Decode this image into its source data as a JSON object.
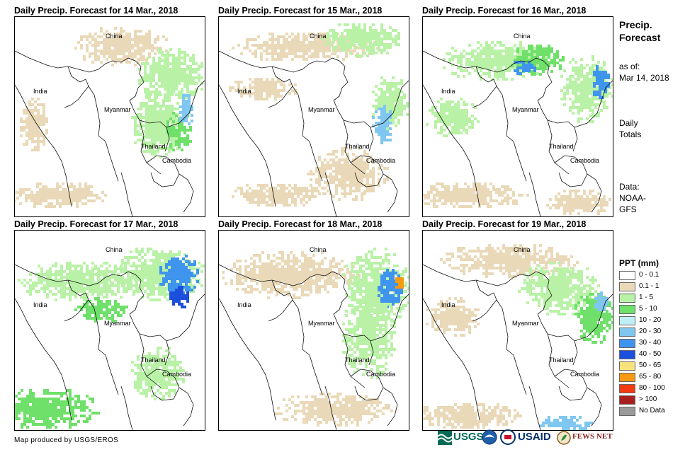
{
  "panels": [
    {
      "title": "Daily Precip. Forecast for 14 Mar., 2018",
      "labels": {
        "china": "China",
        "india": "India",
        "myanmar": "Myanmar",
        "thailand": "Thailand",
        "cambodia": "Cambodia"
      }
    },
    {
      "title": "Daily Precip. Forecast for 15 Mar., 2018",
      "labels": {
        "china": "China",
        "india": "India",
        "myanmar": "Myanmar",
        "thailand": "Thailand",
        "cambodia": "Cambodia"
      }
    },
    {
      "title": "Daily Precip. Forecast for 16 Mar., 2018",
      "labels": {
        "china": "China",
        "india": "India",
        "myanmar": "Myanmar",
        "thailand": "Thailand",
        "cambodia": "Cambodia"
      }
    },
    {
      "title": "Daily Precip. Forecast for 17 Mar., 2018",
      "labels": {
        "china": "China",
        "india": "India",
        "myanmar": "Myanmar",
        "thailand": "Thailand",
        "cambodia": "Cambodia"
      }
    },
    {
      "title": "Daily Precip. Forecast for 18 Mar., 2018",
      "labels": {
        "china": "China",
        "india": "India",
        "myanmar": "Myanmar",
        "thailand": "Thailand",
        "cambodia": "Cambodia"
      }
    },
    {
      "title": "Daily Precip. Forecast for 19 Mar., 2018",
      "labels": {
        "china": "China",
        "india": "India",
        "myanmar": "Myanmar",
        "thailand": "Thailand",
        "cambodia": "Cambodia"
      }
    }
  ],
  "sidebar": {
    "title_line1": "Precip.",
    "title_line2": "Forecast",
    "asof_label": "as of:",
    "asof_date": "Mar 14, 2018",
    "totals_line1": "Daily",
    "totals_line2": "Totals",
    "data_line1": "Data:",
    "data_line2": "NOAA-",
    "data_line3": "GFS"
  },
  "legend": {
    "title": "PPT (mm)",
    "items": [
      {
        "label": "0 - 0.1",
        "color": "#ffffff"
      },
      {
        "label": "0.1 - 1",
        "color": "#ead9b8"
      },
      {
        "label": "1 - 5",
        "color": "#b9f2a6"
      },
      {
        "label": "5 - 10",
        "color": "#6fe06a"
      },
      {
        "label": "10 - 20",
        "color": "#bdeff5"
      },
      {
        "label": "20 - 30",
        "color": "#7fc7f0"
      },
      {
        "label": "30 - 40",
        "color": "#3f95ee"
      },
      {
        "label": "40 - 50",
        "color": "#1c4fdc"
      },
      {
        "label": "50 - 65",
        "color": "#f7e27c"
      },
      {
        "label": "65 - 80",
        "color": "#f59a12"
      },
      {
        "label": "80 - 100",
        "color": "#f23b10"
      },
      {
        "label": "> 100",
        "color": "#a8201e"
      },
      {
        "label": "No Data",
        "color": "#9a9a9a"
      }
    ]
  },
  "footer": {
    "credit": "Map produced by USGS/EROS",
    "usgs": "USGS",
    "usaid": "USAID",
    "fewsnet": "FEWS NET"
  }
}
